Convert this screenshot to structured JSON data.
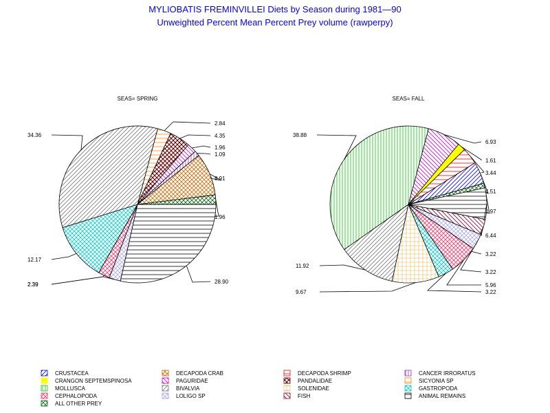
{
  "chart_data": {
    "type": "pie",
    "title": "MYLIOBATIS FREMINVILLEI Diets by Season during 1981—90",
    "subtitle": "Unweighted Percent Mean Percent Prey  volume (rawperpy)",
    "categories": [
      {
        "key": "crustacea",
        "name": "CRUSTACEA",
        "color": "#0000ff",
        "pattern": "hatch-fwd"
      },
      {
        "key": "decapoda_crab",
        "name": "DECAPODA CRAB",
        "color": "#cc6600",
        "pattern": "cross-diag"
      },
      {
        "key": "decapoda_shrimp",
        "name": "DECAPODA SHRIMP",
        "color": "#ff0000",
        "pattern": "horiz"
      },
      {
        "key": "cancer_irroratus",
        "name": "CANCER IRRORATUS",
        "color": "#9933cc",
        "pattern": "vert"
      },
      {
        "key": "crangon",
        "name": "CRANGON SEPTEMSPINOSA",
        "color": "#ffff00",
        "pattern": "solid"
      },
      {
        "key": "paguridae",
        "name": "PAGURIDAE",
        "color": "#cc00cc",
        "pattern": "hatch-back"
      },
      {
        "key": "pandalidae",
        "name": "PANDALIDAE",
        "color": "#660000",
        "pattern": "cross-diag-dense"
      },
      {
        "key": "sicyonia",
        "name": "SICYONIA SP",
        "color": "#ff8800",
        "pattern": "horiz"
      },
      {
        "key": "mollusca",
        "name": "MOLLUSCA",
        "color": "#00cc00",
        "pattern": "vert"
      },
      {
        "key": "bivalvia",
        "name": "BIVALVIA",
        "color": "#777777",
        "pattern": "hatch-fwd"
      },
      {
        "key": "solenidae",
        "name": "SOLENIDAE",
        "color": "#e6cc80",
        "pattern": "grid"
      },
      {
        "key": "gastropoda",
        "name": "GASTROPODA",
        "color": "#00cccc",
        "pattern": "cross-diag"
      },
      {
        "key": "cephalopoda",
        "name": "CEPHALOPODA",
        "color": "#ff3366",
        "pattern": "cross-diag"
      },
      {
        "key": "loligo",
        "name": "LOLIGO SP",
        "color": "#aaaaee",
        "pattern": "cross-diag"
      },
      {
        "key": "fish",
        "name": "FISH",
        "color": "#880033",
        "pattern": "hatch-back"
      },
      {
        "key": "animal_remains",
        "name": "ANIMAL REMAINS",
        "color": "#000000",
        "pattern": "horiz"
      },
      {
        "key": "other_prey",
        "name": "ALL OTHER PREY",
        "color": "#006600",
        "pattern": "cross-diag"
      }
    ],
    "series": [
      {
        "name": "SEAS= SPRING",
        "slices": [
          {
            "category": "sicyonia",
            "value": 2.84,
            "label": "2.84"
          },
          {
            "category": "pandalidae",
            "value": 4.35,
            "label": "4.35"
          },
          {
            "category": "paguridae",
            "value": 1.96,
            "label": "1.96"
          },
          {
            "category": "cancer_irroratus",
            "value": 1.09,
            "label": "1.09"
          },
          {
            "category": "decapoda_crab",
            "value": 8.91,
            "label": "8.91"
          },
          {
            "category": "other_prey",
            "value": 1.96,
            "label": "1.96"
          },
          {
            "category": "animal_remains",
            "value": 28.9,
            "label": "28.90"
          },
          {
            "category": "loligo",
            "value": 2.39,
            "label": "2.39"
          },
          {
            "category": "cephalopoda",
            "value": 2.39,
            "label": "2.39"
          },
          {
            "category": "gastropoda",
            "value": 12.17,
            "label": "12.17"
          },
          {
            "category": "bivalvia",
            "value": 34.36,
            "label": "34.36"
          }
        ]
      },
      {
        "name": "SEAS= FALL",
        "slices": [
          {
            "category": "paguridae",
            "value": 6.93,
            "label": "6.93"
          },
          {
            "category": "crangon",
            "value": 1.61,
            "label": "1.61"
          },
          {
            "category": "decapoda_shrimp",
            "value": 3.44,
            "label": "3.44"
          },
          {
            "category": "crustacea",
            "value": 4.51,
            "label": "4.51"
          },
          {
            "category": "other_prey",
            "value": 0.97,
            "label": "0.97"
          },
          {
            "category": "animal_remains",
            "value": 6.44,
            "label": "6.44"
          },
          {
            "category": "fish",
            "value": 3.22,
            "label": "3.22"
          },
          {
            "category": "loligo",
            "value": 3.22,
            "label": "3.22"
          },
          {
            "category": "cephalopoda",
            "value": 5.96,
            "label": "5.96"
          },
          {
            "category": "gastropoda",
            "value": 3.22,
            "label": "3.22"
          },
          {
            "category": "solenidae",
            "value": 9.67,
            "label": "9.67"
          },
          {
            "category": "bivalvia",
            "value": 11.92,
            "label": "11.92"
          },
          {
            "category": "mollusca",
            "value": 38.88,
            "label": "38.88"
          }
        ]
      }
    ],
    "legend_placement": "bottom"
  }
}
